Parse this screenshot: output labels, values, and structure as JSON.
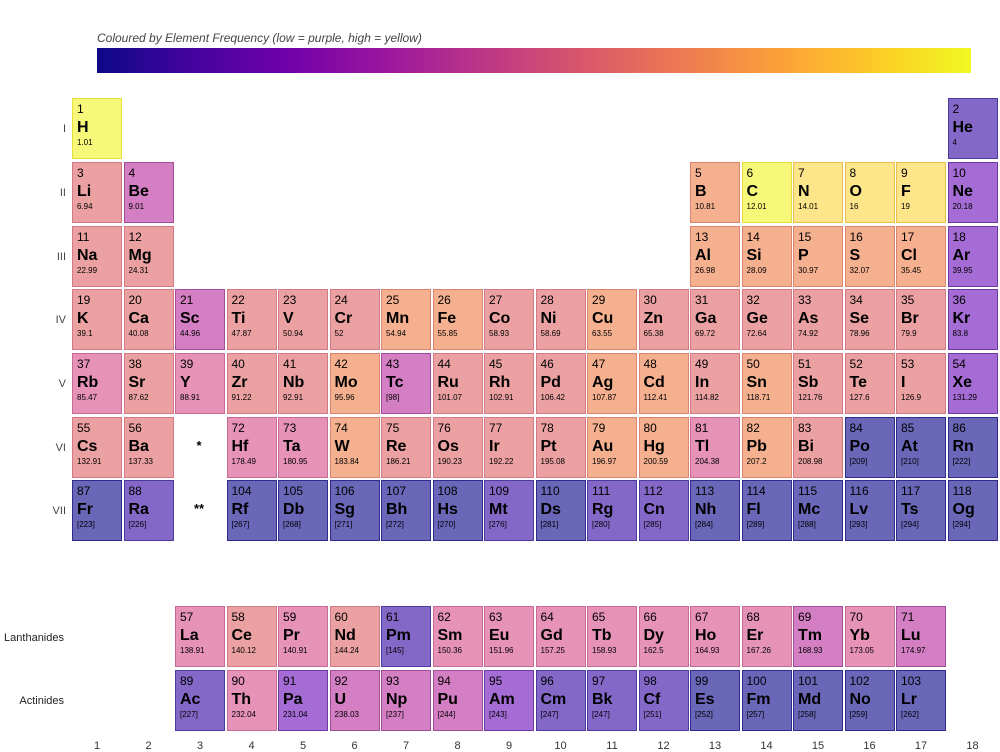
{
  "colorbar": {
    "title": "Coloured by Element Frequency  (low = purple, high = yellow)",
    "colors": [
      "#0d0887",
      "#46039f",
      "#7201a8",
      "#9c179e",
      "#bd3786",
      "#d8576b",
      "#ed7953",
      "#fb9f3a",
      "#fdca26",
      "#f0f921"
    ]
  },
  "row_labels": [
    "I",
    "II",
    "III",
    "IV",
    "V",
    "VI",
    "VII"
  ],
  "series_labels": [
    "Lanthanides",
    "Actinides"
  ],
  "placeholders": [
    "*",
    "**"
  ],
  "group_numbers": [
    "1",
    "2",
    "3",
    "4",
    "5",
    "6",
    "7",
    "8",
    "9",
    "10",
    "11",
    "12",
    "13",
    "14",
    "15",
    "16",
    "17",
    "18"
  ],
  "chart_data": {
    "type": "heatmap",
    "title": "Coloured by Element Frequency  (low = purple, high = yellow)",
    "color_scale": "plasma",
    "elements": [
      {
        "n": "1",
        "s": "H",
        "m": "1.01",
        "g": 1,
        "p": 1,
        "c": "#f7f87a",
        "b": "#e6de3a"
      },
      {
        "n": "2",
        "s": "He",
        "m": "4",
        "g": 18,
        "p": 1,
        "c": "#8368c8",
        "b": "#4b3aa0"
      },
      {
        "n": "3",
        "s": "Li",
        "m": "6.94",
        "g": 1,
        "p": 2,
        "c": "#eba1a1",
        "b": "#d47a86"
      },
      {
        "n": "4",
        "s": "Be",
        "m": "9.01",
        "g": 2,
        "p": 2,
        "c": "#d47fc3",
        "b": "#a04c98"
      },
      {
        "n": "5",
        "s": "B",
        "m": "10.81",
        "g": 13,
        "p": 2,
        "c": "#f5b08f",
        "b": "#dd8470"
      },
      {
        "n": "6",
        "s": "C",
        "m": "12.01",
        "g": 14,
        "p": 2,
        "c": "#f7f87a",
        "b": "#e6de3a"
      },
      {
        "n": "7",
        "s": "N",
        "m": "14.01",
        "g": 15,
        "p": 2,
        "c": "#fde58a",
        "b": "#eabf4c"
      },
      {
        "n": "8",
        "s": "O",
        "m": "16",
        "g": 16,
        "p": 2,
        "c": "#fde58a",
        "b": "#eabf4c"
      },
      {
        "n": "9",
        "s": "F",
        "m": "19",
        "g": 17,
        "p": 2,
        "c": "#fde58a",
        "b": "#eabf4c"
      },
      {
        "n": "10",
        "s": "Ne",
        "m": "20.18",
        "g": 18,
        "p": 2,
        "c": "#a46cd4",
        "b": "#6c3aa4"
      },
      {
        "n": "11",
        "s": "Na",
        "m": "22.99",
        "g": 1,
        "p": 3,
        "c": "#eba1a1",
        "b": "#d47a86"
      },
      {
        "n": "12",
        "s": "Mg",
        "m": "24.31",
        "g": 2,
        "p": 3,
        "c": "#eba1a1",
        "b": "#d47a86"
      },
      {
        "n": "13",
        "s": "Al",
        "m": "26.98",
        "g": 13,
        "p": 3,
        "c": "#f5b08f",
        "b": "#dd8470"
      },
      {
        "n": "14",
        "s": "Si",
        "m": "28.09",
        "g": 14,
        "p": 3,
        "c": "#f5b08f",
        "b": "#dd8470"
      },
      {
        "n": "15",
        "s": "P",
        "m": "30.97",
        "g": 15,
        "p": 3,
        "c": "#f5b08f",
        "b": "#dd8470"
      },
      {
        "n": "16",
        "s": "S",
        "m": "32.07",
        "g": 16,
        "p": 3,
        "c": "#f5b08f",
        "b": "#dd8470"
      },
      {
        "n": "17",
        "s": "Cl",
        "m": "35.45",
        "g": 17,
        "p": 3,
        "c": "#f5b08f",
        "b": "#dd8470"
      },
      {
        "n": "18",
        "s": "Ar",
        "m": "39.95",
        "g": 18,
        "p": 3,
        "c": "#a46cd4",
        "b": "#6c3aa4"
      },
      {
        "n": "19",
        "s": "K",
        "m": "39.1",
        "g": 1,
        "p": 4,
        "c": "#eba1a1",
        "b": "#d47a86"
      },
      {
        "n": "20",
        "s": "Ca",
        "m": "40.08",
        "g": 2,
        "p": 4,
        "c": "#eba1a1",
        "b": "#d47a86"
      },
      {
        "n": "21",
        "s": "Sc",
        "m": "44.96",
        "g": 3,
        "p": 4,
        "c": "#d47fc3",
        "b": "#a04c98"
      },
      {
        "n": "22",
        "s": "Ti",
        "m": "47.87",
        "g": 4,
        "p": 4,
        "c": "#eba1a1",
        "b": "#d47a86"
      },
      {
        "n": "23",
        "s": "V",
        "m": "50.94",
        "g": 5,
        "p": 4,
        "c": "#eba1a1",
        "b": "#d47a86"
      },
      {
        "n": "24",
        "s": "Cr",
        "m": "52",
        "g": 6,
        "p": 4,
        "c": "#eba1a1",
        "b": "#d47a86"
      },
      {
        "n": "25",
        "s": "Mn",
        "m": "54.94",
        "g": 7,
        "p": 4,
        "c": "#f5b08f",
        "b": "#dd8470"
      },
      {
        "n": "26",
        "s": "Fe",
        "m": "55.85",
        "g": 8,
        "p": 4,
        "c": "#f5b08f",
        "b": "#dd8470"
      },
      {
        "n": "27",
        "s": "Co",
        "m": "58.93",
        "g": 9,
        "p": 4,
        "c": "#eba1a1",
        "b": "#d47a86"
      },
      {
        "n": "28",
        "s": "Ni",
        "m": "58.69",
        "g": 10,
        "p": 4,
        "c": "#eba1a1",
        "b": "#d47a86"
      },
      {
        "n": "29",
        "s": "Cu",
        "m": "63.55",
        "g": 11,
        "p": 4,
        "c": "#f5b08f",
        "b": "#dd8470"
      },
      {
        "n": "30",
        "s": "Zn",
        "m": "65.38",
        "g": 12,
        "p": 4,
        "c": "#eba1a1",
        "b": "#d47a86"
      },
      {
        "n": "31",
        "s": "Ga",
        "m": "69.72",
        "g": 13,
        "p": 4,
        "c": "#eba1a1",
        "b": "#d47a86"
      },
      {
        "n": "32",
        "s": "Ge",
        "m": "72.64",
        "g": 14,
        "p": 4,
        "c": "#eba1a1",
        "b": "#d47a86"
      },
      {
        "n": "33",
        "s": "As",
        "m": "74.92",
        "g": 15,
        "p": 4,
        "c": "#eba1a1",
        "b": "#d47a86"
      },
      {
        "n": "34",
        "s": "Se",
        "m": "78.96",
        "g": 16,
        "p": 4,
        "c": "#eba1a1",
        "b": "#d47a86"
      },
      {
        "n": "35",
        "s": "Br",
        "m": "79.9",
        "g": 17,
        "p": 4,
        "c": "#eba1a1",
        "b": "#d47a86"
      },
      {
        "n": "36",
        "s": "Kr",
        "m": "83.8",
        "g": 18,
        "p": 4,
        "c": "#a46cd4",
        "b": "#6c3aa4"
      },
      {
        "n": "37",
        "s": "Rb",
        "m": "85.47",
        "g": 1,
        "p": 5,
        "c": "#e693b7",
        "b": "#c86a96"
      },
      {
        "n": "38",
        "s": "Sr",
        "m": "87.62",
        "g": 2,
        "p": 5,
        "c": "#eba1a1",
        "b": "#d47a86"
      },
      {
        "n": "39",
        "s": "Y",
        "m": "88.91",
        "g": 3,
        "p": 5,
        "c": "#e693b7",
        "b": "#c86a96"
      },
      {
        "n": "40",
        "s": "Zr",
        "m": "91.22",
        "g": 4,
        "p": 5,
        "c": "#eba1a1",
        "b": "#d47a86"
      },
      {
        "n": "41",
        "s": "Nb",
        "m": "92.91",
        "g": 5,
        "p": 5,
        "c": "#eba1a1",
        "b": "#d47a86"
      },
      {
        "n": "42",
        "s": "Mo",
        "m": "95.96",
        "g": 6,
        "p": 5,
        "c": "#f5b08f",
        "b": "#dd8470"
      },
      {
        "n": "43",
        "s": "Tc",
        "m": "[98]",
        "g": 7,
        "p": 5,
        "c": "#d47fc3",
        "b": "#a04c98"
      },
      {
        "n": "44",
        "s": "Ru",
        "m": "101.07",
        "g": 8,
        "p": 5,
        "c": "#eba1a1",
        "b": "#d47a86"
      },
      {
        "n": "45",
        "s": "Rh",
        "m": "102.91",
        "g": 9,
        "p": 5,
        "c": "#eba1a1",
        "b": "#d47a86"
      },
      {
        "n": "46",
        "s": "Pd",
        "m": "106.42",
        "g": 10,
        "p": 5,
        "c": "#eba1a1",
        "b": "#d47a86"
      },
      {
        "n": "47",
        "s": "Ag",
        "m": "107.87",
        "g": 11,
        "p": 5,
        "c": "#f5b08f",
        "b": "#dd8470"
      },
      {
        "n": "48",
        "s": "Cd",
        "m": "112.41",
        "g": 12,
        "p": 5,
        "c": "#f5b08f",
        "b": "#dd8470"
      },
      {
        "n": "49",
        "s": "In",
        "m": "114.82",
        "g": 13,
        "p": 5,
        "c": "#eba1a1",
        "b": "#d47a86"
      },
      {
        "n": "50",
        "s": "Sn",
        "m": "118.71",
        "g": 14,
        "p": 5,
        "c": "#f5b08f",
        "b": "#dd8470"
      },
      {
        "n": "51",
        "s": "Sb",
        "m": "121.76",
        "g": 15,
        "p": 5,
        "c": "#eba1a1",
        "b": "#d47a86"
      },
      {
        "n": "52",
        "s": "Te",
        "m": "127.6",
        "g": 16,
        "p": 5,
        "c": "#eba1a1",
        "b": "#d47a86"
      },
      {
        "n": "53",
        "s": "I",
        "m": "126.9",
        "g": 17,
        "p": 5,
        "c": "#eba1a1",
        "b": "#d47a86"
      },
      {
        "n": "54",
        "s": "Xe",
        "m": "131.29",
        "g": 18,
        "p": 5,
        "c": "#a46cd4",
        "b": "#6c3aa4"
      },
      {
        "n": "55",
        "s": "Cs",
        "m": "132.91",
        "g": 1,
        "p": 6,
        "c": "#eba1a1",
        "b": "#d47a86"
      },
      {
        "n": "56",
        "s": "Ba",
        "m": "137.33",
        "g": 2,
        "p": 6,
        "c": "#eba1a1",
        "b": "#d47a86"
      },
      {
        "n": "72",
        "s": "Hf",
        "m": "178.49",
        "g": 4,
        "p": 6,
        "c": "#e693b7",
        "b": "#c86a96"
      },
      {
        "n": "73",
        "s": "Ta",
        "m": "180.95",
        "g": 5,
        "p": 6,
        "c": "#e693b7",
        "b": "#c86a96"
      },
      {
        "n": "74",
        "s": "W",
        "m": "183.84",
        "g": 6,
        "p": 6,
        "c": "#f5b08f",
        "b": "#dd8470"
      },
      {
        "n": "75",
        "s": "Re",
        "m": "186.21",
        "g": 7,
        "p": 6,
        "c": "#eba1a1",
        "b": "#d47a86"
      },
      {
        "n": "76",
        "s": "Os",
        "m": "190.23",
        "g": 8,
        "p": 6,
        "c": "#eba1a1",
        "b": "#d47a86"
      },
      {
        "n": "77",
        "s": "Ir",
        "m": "192.22",
        "g": 9,
        "p": 6,
        "c": "#eba1a1",
        "b": "#d47a86"
      },
      {
        "n": "78",
        "s": "Pt",
        "m": "195.08",
        "g": 10,
        "p": 6,
        "c": "#eba1a1",
        "b": "#d47a86"
      },
      {
        "n": "79",
        "s": "Au",
        "m": "196.97",
        "g": 11,
        "p": 6,
        "c": "#f5b08f",
        "b": "#dd8470"
      },
      {
        "n": "80",
        "s": "Hg",
        "m": "200.59",
        "g": 12,
        "p": 6,
        "c": "#f5b08f",
        "b": "#dd8470"
      },
      {
        "n": "81",
        "s": "Tl",
        "m": "204.38",
        "g": 13,
        "p": 6,
        "c": "#e693b7",
        "b": "#c86a96"
      },
      {
        "n": "82",
        "s": "Pb",
        "m": "207.2",
        "g": 14,
        "p": 6,
        "c": "#f5b08f",
        "b": "#dd8470"
      },
      {
        "n": "83",
        "s": "Bi",
        "m": "208.98",
        "g": 15,
        "p": 6,
        "c": "#eba1a1",
        "b": "#d47a86"
      },
      {
        "n": "84",
        "s": "Po",
        "m": "[209]",
        "g": 16,
        "p": 6,
        "c": "#6a66b8",
        "b": "#2e2a8e"
      },
      {
        "n": "85",
        "s": "At",
        "m": "[210]",
        "g": 17,
        "p": 6,
        "c": "#6a66b8",
        "b": "#2e2a8e"
      },
      {
        "n": "86",
        "s": "Rn",
        "m": "[222]",
        "g": 18,
        "p": 6,
        "c": "#6a66b8",
        "b": "#2e2a8e"
      },
      {
        "n": "87",
        "s": "Fr",
        "m": "[223]",
        "g": 1,
        "p": 7,
        "c": "#6a66b8",
        "b": "#2e2a8e"
      },
      {
        "n": "88",
        "s": "Ra",
        "m": "[226]",
        "g": 2,
        "p": 7,
        "c": "#8368c8",
        "b": "#4b3aa0"
      },
      {
        "n": "104",
        "s": "Rf",
        "m": "[267]",
        "g": 4,
        "p": 7,
        "c": "#6a66b8",
        "b": "#2e2a8e"
      },
      {
        "n": "105",
        "s": "Db",
        "m": "[268]",
        "g": 5,
        "p": 7,
        "c": "#6a66b8",
        "b": "#2e2a8e"
      },
      {
        "n": "106",
        "s": "Sg",
        "m": "[271]",
        "g": 6,
        "p": 7,
        "c": "#6a66b8",
        "b": "#2e2a8e"
      },
      {
        "n": "107",
        "s": "Bh",
        "m": "[272]",
        "g": 7,
        "p": 7,
        "c": "#6a66b8",
        "b": "#2e2a8e"
      },
      {
        "n": "108",
        "s": "Hs",
        "m": "[270]",
        "g": 8,
        "p": 7,
        "c": "#6a66b8",
        "b": "#2e2a8e"
      },
      {
        "n": "109",
        "s": "Mt",
        "m": "[276]",
        "g": 9,
        "p": 7,
        "c": "#8368c8",
        "b": "#4b3aa0"
      },
      {
        "n": "110",
        "s": "Ds",
        "m": "[281]",
        "g": 10,
        "p": 7,
        "c": "#6a66b8",
        "b": "#2e2a8e"
      },
      {
        "n": "111",
        "s": "Rg",
        "m": "[280]",
        "g": 11,
        "p": 7,
        "c": "#8368c8",
        "b": "#4b3aa0"
      },
      {
        "n": "112",
        "s": "Cn",
        "m": "[285]",
        "g": 12,
        "p": 7,
        "c": "#8368c8",
        "b": "#4b3aa0"
      },
      {
        "n": "113",
        "s": "Nh",
        "m": "[284]",
        "g": 13,
        "p": 7,
        "c": "#6a66b8",
        "b": "#2e2a8e"
      },
      {
        "n": "114",
        "s": "Fl",
        "m": "[289]",
        "g": 14,
        "p": 7,
        "c": "#6a66b8",
        "b": "#2e2a8e"
      },
      {
        "n": "115",
        "s": "Mc",
        "m": "[288]",
        "g": 15,
        "p": 7,
        "c": "#6a66b8",
        "b": "#2e2a8e"
      },
      {
        "n": "116",
        "s": "Lv",
        "m": "[293]",
        "g": 16,
        "p": 7,
        "c": "#6a66b8",
        "b": "#2e2a8e"
      },
      {
        "n": "117",
        "s": "Ts",
        "m": "[294]",
        "g": 17,
        "p": 7,
        "c": "#6a66b8",
        "b": "#2e2a8e"
      },
      {
        "n": "118",
        "s": "Og",
        "m": "[294]",
        "g": 18,
        "p": 7,
        "c": "#6a66b8",
        "b": "#2e2a8e"
      },
      {
        "n": "57",
        "s": "La",
        "m": "138.91",
        "g": 3,
        "p": 9,
        "c": "#e693b7",
        "b": "#c86a96"
      },
      {
        "n": "58",
        "s": "Ce",
        "m": "140.12",
        "g": 4,
        "p": 9,
        "c": "#eba1a1",
        "b": "#d47a86"
      },
      {
        "n": "59",
        "s": "Pr",
        "m": "140.91",
        "g": 5,
        "p": 9,
        "c": "#e693b7",
        "b": "#c86a96"
      },
      {
        "n": "60",
        "s": "Nd",
        "m": "144.24",
        "g": 6,
        "p": 9,
        "c": "#eba1a1",
        "b": "#d47a86"
      },
      {
        "n": "61",
        "s": "Pm",
        "m": "[145]",
        "g": 7,
        "p": 9,
        "c": "#8368c8",
        "b": "#4b3aa0"
      },
      {
        "n": "62",
        "s": "Sm",
        "m": "150.36",
        "g": 8,
        "p": 9,
        "c": "#e693b7",
        "b": "#c86a96"
      },
      {
        "n": "63",
        "s": "Eu",
        "m": "151.96",
        "g": 9,
        "p": 9,
        "c": "#e693b7",
        "b": "#c86a96"
      },
      {
        "n": "64",
        "s": "Gd",
        "m": "157.25",
        "g": 10,
        "p": 9,
        "c": "#e693b7",
        "b": "#c86a96"
      },
      {
        "n": "65",
        "s": "Tb",
        "m": "158.93",
        "g": 11,
        "p": 9,
        "c": "#e693b7",
        "b": "#c86a96"
      },
      {
        "n": "66",
        "s": "Dy",
        "m": "162.5",
        "g": 12,
        "p": 9,
        "c": "#e693b7",
        "b": "#c86a96"
      },
      {
        "n": "67",
        "s": "Ho",
        "m": "164.93",
        "g": 13,
        "p": 9,
        "c": "#e693b7",
        "b": "#c86a96"
      },
      {
        "n": "68",
        "s": "Er",
        "m": "167.26",
        "g": 14,
        "p": 9,
        "c": "#e693b7",
        "b": "#c86a96"
      },
      {
        "n": "69",
        "s": "Tm",
        "m": "168.93",
        "g": 15,
        "p": 9,
        "c": "#d47fc3",
        "b": "#a04c98"
      },
      {
        "n": "70",
        "s": "Yb",
        "m": "173.05",
        "g": 16,
        "p": 9,
        "c": "#e693b7",
        "b": "#c86a96"
      },
      {
        "n": "71",
        "s": "Lu",
        "m": "174.97",
        "g": 17,
        "p": 9,
        "c": "#d47fc3",
        "b": "#a04c98"
      },
      {
        "n": "89",
        "s": "Ac",
        "m": "[227]",
        "g": 3,
        "p": 10,
        "c": "#8368c8",
        "b": "#4b3aa0"
      },
      {
        "n": "90",
        "s": "Th",
        "m": "232.04",
        "g": 4,
        "p": 10,
        "c": "#e693b7",
        "b": "#c86a96"
      },
      {
        "n": "91",
        "s": "Pa",
        "m": "231.04",
        "g": 5,
        "p": 10,
        "c": "#a46cd4",
        "b": "#6c3aa4"
      },
      {
        "n": "92",
        "s": "U",
        "m": "238.03",
        "g": 6,
        "p": 10,
        "c": "#d47fc3",
        "b": "#a04c98"
      },
      {
        "n": "93",
        "s": "Np",
        "m": "[237]",
        "g": 7,
        "p": 10,
        "c": "#d47fc3",
        "b": "#a04c98"
      },
      {
        "n": "94",
        "s": "Pu",
        "m": "[244]",
        "g": 8,
        "p": 10,
        "c": "#d47fc3",
        "b": "#a04c98"
      },
      {
        "n": "95",
        "s": "Am",
        "m": "[243]",
        "g": 9,
        "p": 10,
        "c": "#a46cd4",
        "b": "#6c3aa4"
      },
      {
        "n": "96",
        "s": "Cm",
        "m": "[247]",
        "g": 10,
        "p": 10,
        "c": "#8368c8",
        "b": "#4b3aa0"
      },
      {
        "n": "97",
        "s": "Bk",
        "m": "[247]",
        "g": 11,
        "p": 10,
        "c": "#8368c8",
        "b": "#4b3aa0"
      },
      {
        "n": "98",
        "s": "Cf",
        "m": "[251]",
        "g": 12,
        "p": 10,
        "c": "#8368c8",
        "b": "#4b3aa0"
      },
      {
        "n": "99",
        "s": "Es",
        "m": "[252]",
        "g": 13,
        "p": 10,
        "c": "#6a66b8",
        "b": "#2e2a8e"
      },
      {
        "n": "100",
        "s": "Fm",
        "m": "[257]",
        "g": 14,
        "p": 10,
        "c": "#6a66b8",
        "b": "#2e2a8e"
      },
      {
        "n": "101",
        "s": "Md",
        "m": "[258]",
        "g": 15,
        "p": 10,
        "c": "#6a66b8",
        "b": "#2e2a8e"
      },
      {
        "n": "102",
        "s": "No",
        "m": "[259]",
        "g": 16,
        "p": 10,
        "c": "#6a66b8",
        "b": "#2e2a8e"
      },
      {
        "n": "103",
        "s": "Lr",
        "m": "[262]",
        "g": 17,
        "p": 10,
        "c": "#6a66b8",
        "b": "#2e2a8e"
      }
    ]
  }
}
